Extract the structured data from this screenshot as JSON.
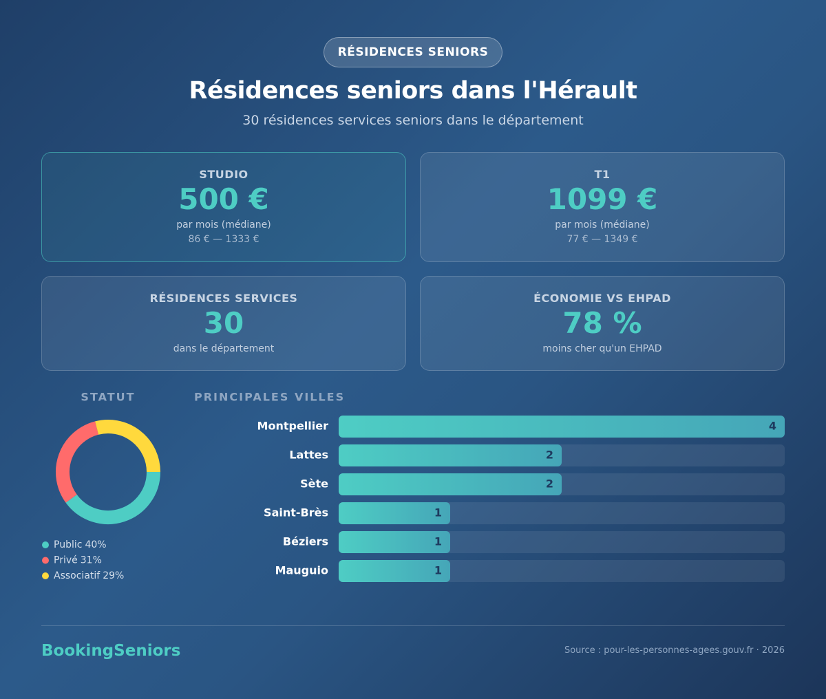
{
  "header": {
    "badge": "RÉSIDENCES SENIORS",
    "title": "Résidences seniors dans l'Hérault",
    "subtitle": "30 résidences services seniors dans le département"
  },
  "cards": [
    {
      "label": "STUDIO",
      "value": "500 €",
      "note": "par mois (médiane)",
      "range": "86 € — 1333 €"
    },
    {
      "label": "T1",
      "value": "1099 €",
      "note": "par mois (médiane)",
      "range": "77 € — 1349 €"
    },
    {
      "label": "RÉSIDENCES SERVICES",
      "value": "30",
      "note": "dans le département"
    },
    {
      "label": "ÉCONOMIE VS EHPAD",
      "value": "78 %",
      "note": "moins cher qu'un EHPAD"
    }
  ],
  "chart_data": [
    {
      "type": "pie",
      "donut": true,
      "title": "STATUT",
      "categories": [
        "Public",
        "Privé",
        "Associatif"
      ],
      "values": [
        40,
        31,
        29
      ],
      "value_labels": [
        "40%",
        "31%",
        "29%"
      ],
      "colors": [
        "#4ecdc4",
        "#ff6b6b",
        "#ffd93d"
      ]
    },
    {
      "type": "bar",
      "orientation": "horizontal",
      "title": "PRINCIPALES VILLES",
      "categories": [
        "Montpellier",
        "Lattes",
        "Sète",
        "Saint-Brès",
        "Béziers",
        "Mauguio"
      ],
      "values": [
        4,
        2,
        2,
        1,
        1,
        1
      ],
      "color": "#4ecdc4"
    }
  ],
  "footer": {
    "brand": "BookingSeniors",
    "source": "Source : pour-les-personnes-agees.gouv.fr · 2026"
  }
}
